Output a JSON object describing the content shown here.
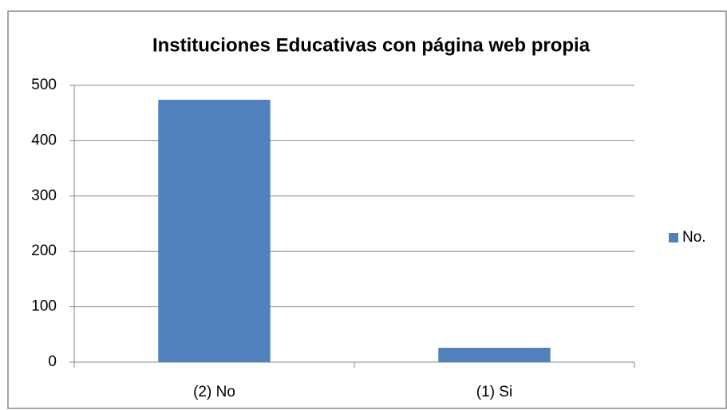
{
  "chart_data": {
    "type": "bar",
    "title": "Instituciones Educativas con página web propia",
    "categories": [
      "(2) No",
      "(1) Si"
    ],
    "series": [
      {
        "name": "No.",
        "color": "#4f81bd",
        "values": [
          474,
          26
        ]
      }
    ],
    "ylim": [
      0,
      500
    ],
    "yticks": [
      0,
      100,
      200,
      300,
      400,
      500
    ],
    "grid": true,
    "legend": "right"
  }
}
